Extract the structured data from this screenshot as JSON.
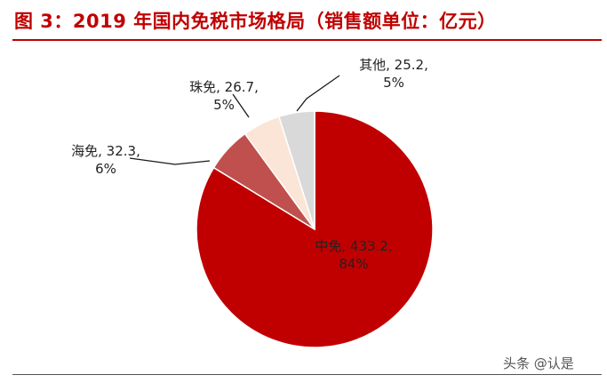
{
  "figure_title": "图 3：2019 年国内免税市场格局（销售额单位：亿元）",
  "watermark": "头条 @认是",
  "chart_data": {
    "type": "pie",
    "title": "图 3：2019 年国内免税市场格局（销售额单位：亿元）",
    "slices": [
      {
        "name": "中免",
        "value": 433.2,
        "value_label": "433.2",
        "percent_label": "84%",
        "color": "#c00000"
      },
      {
        "name": "海免",
        "value": 32.3,
        "value_label": "32.3",
        "percent_label": "6%",
        "color": "#bf504d"
      },
      {
        "name": "珠免",
        "value": 26.7,
        "value_label": "26.7",
        "percent_label": "5%",
        "color": "#fbe5d6"
      },
      {
        "name": "其他",
        "value": 25.2,
        "value_label": "25.2",
        "percent_label": "5%",
        "color": "#d9d9d9"
      }
    ],
    "start_angle_deg": 0,
    "direction": "clockwise",
    "edge_color": "#ffffff",
    "leader_line_color": "#1a1a1a"
  }
}
